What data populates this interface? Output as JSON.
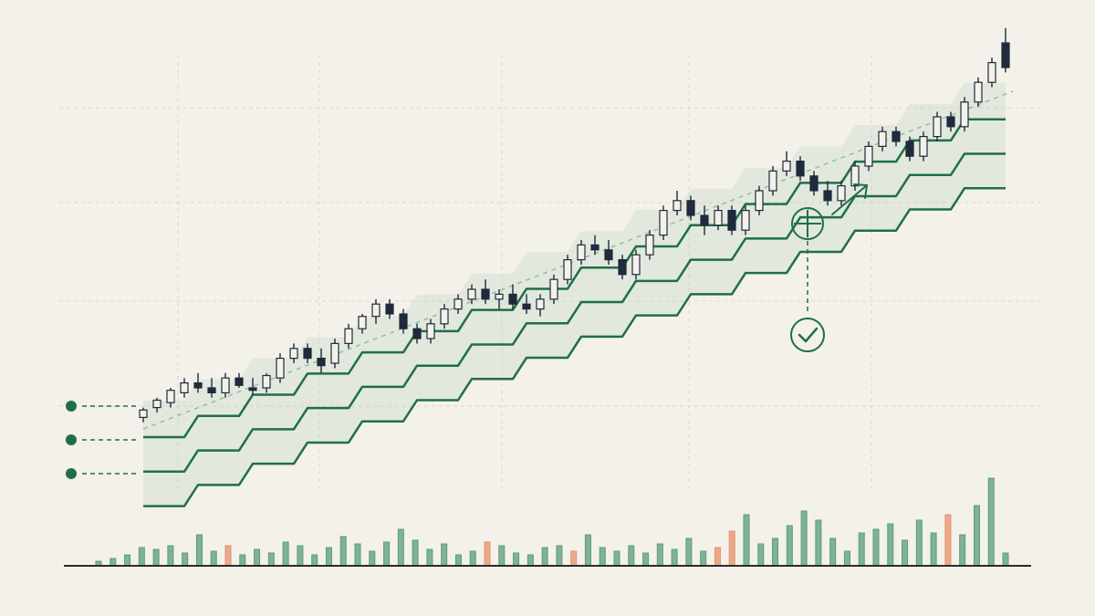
{
  "chart_data": [
    {
      "type": "candlestick",
      "open": [
        19,
        21,
        22,
        24,
        26,
        25,
        24,
        27,
        25,
        25,
        27,
        31,
        33,
        31,
        30,
        34,
        37,
        39.5,
        42,
        40,
        37,
        35,
        38,
        41,
        43,
        45,
        43,
        44,
        42,
        41,
        43,
        47,
        51,
        54,
        53,
        51,
        48,
        52,
        56,
        61,
        63,
        60,
        58,
        61,
        57,
        61,
        65,
        69,
        71,
        68,
        65,
        63,
        66,
        70,
        74,
        77,
        75,
        72,
        76,
        80,
        78,
        83,
        87,
        95
      ],
      "high": [
        21,
        23,
        25,
        27,
        28,
        27,
        28,
        28,
        27,
        28,
        32,
        34,
        34,
        33,
        35,
        38,
        40,
        43,
        43,
        41,
        38,
        39,
        42,
        44,
        46,
        47,
        45,
        46,
        44,
        44,
        48,
        52,
        55,
        56,
        55,
        52,
        53,
        57,
        62,
        65,
        64,
        62,
        62,
        62,
        62,
        66,
        70,
        73,
        72,
        69,
        67,
        67,
        71,
        75,
        78,
        78,
        76,
        77,
        81,
        81,
        84,
        88,
        92,
        98
      ],
      "low": [
        18,
        20,
        21,
        23,
        24,
        23,
        23,
        25,
        23.5,
        24,
        26,
        30,
        30,
        28,
        29,
        33,
        36,
        38,
        39,
        36,
        34,
        34,
        37,
        40,
        42,
        42,
        41,
        41,
        40,
        39.5,
        42,
        46,
        50,
        52,
        50,
        47,
        47,
        51,
        55,
        60,
        59,
        56,
        57,
        56,
        56,
        60,
        64,
        68,
        67,
        64,
        62,
        62,
        65,
        69,
        73,
        74,
        71,
        71,
        75,
        77,
        77,
        82,
        86,
        89
      ],
      "close": [
        20.5,
        22.5,
        24.5,
        26,
        25,
        24,
        27,
        25.5,
        24.5,
        27.5,
        31,
        33,
        31,
        29.5,
        34,
        37,
        39.5,
        42,
        40,
        37,
        35,
        38,
        41,
        43,
        45,
        43,
        44,
        42,
        41,
        43,
        47,
        51,
        54,
        53,
        51,
        48,
        52,
        56,
        61,
        63,
        60,
        58,
        61,
        57,
        61,
        65,
        69,
        71,
        68,
        65,
        63,
        66,
        70,
        74,
        77,
        75,
        72,
        76,
        80,
        78,
        83,
        87,
        91,
        90
      ],
      "up_color": "#f4f1ea",
      "down_color": "#1f2a3c",
      "series": [
        {
          "color": "#1f6f46",
          "values": [
            15,
            15,
            15,
            15,
            19.3,
            19.3,
            19.3,
            19.3,
            23.6,
            23.6,
            23.6,
            23.6,
            27.9,
            27.9,
            27.9,
            27.9,
            32.2,
            32.2,
            32.2,
            32.2,
            36.5,
            36.5,
            36.5,
            36.5,
            40.8,
            40.8,
            40.8,
            40.8,
            45.1,
            45.1,
            45.1,
            45.1,
            49.4,
            49.4,
            49.4,
            49.4,
            53.7,
            53.7,
            53.7,
            53.7,
            58,
            58,
            58,
            58,
            62.3,
            62.3,
            62.3,
            62.3,
            66.6,
            66.6,
            66.6,
            66.6,
            70.9,
            70.9,
            70.9,
            70.9,
            75.2,
            75.2,
            75.2,
            75.2,
            79.5,
            79.5,
            79.5,
            79.5
          ]
        },
        {
          "color": "#1f6f46",
          "values": [
            8,
            8,
            8,
            8,
            12.3,
            12.3,
            12.3,
            12.3,
            16.6,
            16.6,
            16.6,
            16.6,
            20.9,
            20.9,
            20.9,
            20.9,
            25.2,
            25.2,
            25.2,
            25.2,
            29.5,
            29.5,
            29.5,
            29.5,
            33.8,
            33.8,
            33.8,
            33.8,
            38.1,
            38.1,
            38.1,
            38.1,
            42.4,
            42.4,
            42.4,
            42.4,
            46.7,
            46.7,
            46.7,
            46.7,
            51,
            51,
            51,
            51,
            55.3,
            55.3,
            55.3,
            55.3,
            59.6,
            59.6,
            59.6,
            59.6,
            63.9,
            63.9,
            63.9,
            63.9,
            68.2,
            68.2,
            68.2,
            68.2,
            72.5,
            72.5,
            72.5,
            72.5
          ]
        },
        {
          "color": "#1f6f46",
          "values": [
            1,
            1,
            1,
            1,
            5.3,
            5.3,
            5.3,
            5.3,
            9.6,
            9.6,
            9.6,
            9.6,
            13.9,
            13.9,
            13.9,
            13.9,
            18.2,
            18.2,
            18.2,
            18.2,
            22.5,
            22.5,
            22.5,
            22.5,
            26.8,
            26.8,
            26.8,
            26.8,
            31.1,
            31.1,
            31.1,
            31.1,
            35.4,
            35.4,
            35.4,
            35.4,
            39.7,
            39.7,
            39.7,
            39.7,
            44,
            44,
            44,
            44,
            48.3,
            48.3,
            48.3,
            48.3,
            52.6,
            52.6,
            52.6,
            52.6,
            56.9,
            56.9,
            56.9,
            56.9,
            61.2,
            61.2,
            61.2,
            61.2,
            65.5,
            65.5,
            65.5,
            65.5
          ]
        }
      ],
      "ylim": [
        0,
        100
      ]
    },
    {
      "type": "bar",
      "values": [
        5,
        8,
        12,
        20,
        18,
        22,
        14,
        34,
        16,
        22,
        12,
        18,
        14,
        26,
        22,
        12,
        20,
        32,
        24,
        16,
        26,
        40,
        28,
        18,
        24,
        12,
        16,
        26,
        22,
        14,
        12,
        20,
        22,
        16,
        34,
        20,
        16,
        22,
        14,
        24,
        18,
        30,
        16,
        20,
        38,
        56,
        24,
        30,
        44,
        60,
        50,
        30,
        16,
        36,
        40,
        46,
        28,
        50,
        36,
        56,
        34,
        66,
        96,
        14
      ],
      "colors": [
        "#5a9c7c",
        "#5a9c7c",
        "#5a9c7c",
        "#5a9c7c",
        "#5a9c7c",
        "#5a9c7c",
        "#5a9c7c",
        "#5a9c7c",
        "#5a9c7c",
        "#e8906c",
        "#5a9c7c",
        "#5a9c7c",
        "#5a9c7c",
        "#5a9c7c",
        "#5a9c7c",
        "#5a9c7c",
        "#5a9c7c",
        "#5a9c7c",
        "#5a9c7c",
        "#5a9c7c",
        "#5a9c7c",
        "#5a9c7c",
        "#5a9c7c",
        "#5a9c7c",
        "#5a9c7c",
        "#5a9c7c",
        "#5a9c7c",
        "#e8906c",
        "#5a9c7c",
        "#5a9c7c",
        "#5a9c7c",
        "#5a9c7c",
        "#5a9c7c",
        "#e8906c",
        "#5a9c7c",
        "#5a9c7c",
        "#5a9c7c",
        "#5a9c7c",
        "#5a9c7c",
        "#5a9c7c",
        "#5a9c7c",
        "#5a9c7c",
        "#5a9c7c",
        "#e8906c",
        "#e8906c",
        "#5a9c7c",
        "#5a9c7c",
        "#5a9c7c",
        "#5a9c7c",
        "#5a9c7c",
        "#5a9c7c",
        "#5a9c7c",
        "#5a9c7c",
        "#5a9c7c",
        "#5a9c7c",
        "#5a9c7c",
        "#5a9c7c",
        "#5a9c7c",
        "#5a9c7c",
        "#e8906c",
        "#5a9c7c",
        "#5a9c7c",
        "#5a9c7c",
        "#5a9c7c"
      ],
      "ylim": [
        0,
        100
      ]
    }
  ]
}
